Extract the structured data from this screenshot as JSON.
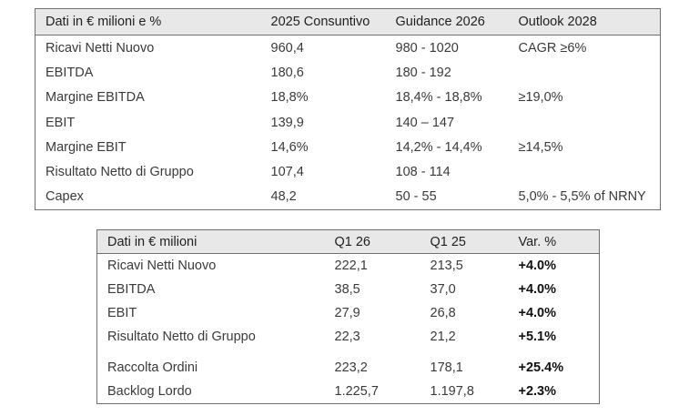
{
  "guidance_table": {
    "headers": [
      "Dati in € milioni e %",
      "2025 Consuntivo",
      "Guidance 2026",
      "Outlook 2028"
    ],
    "rows": [
      [
        "Ricavi Netti Nuovo",
        "960,4",
        "980 - 1020",
        "CAGR ≥6%"
      ],
      [
        "EBITDA",
        "180,6",
        "180 - 192",
        ""
      ],
      [
        "Margine EBITDA",
        "18,8%",
        "18,4% - 18,8%",
        "≥19,0%"
      ],
      [
        "EBIT",
        "139,9",
        "140 – 147",
        ""
      ],
      [
        "Margine EBIT",
        "14,6%",
        "14,2% - 14,4%",
        "≥14,5%"
      ],
      [
        "Risultato Netto di Gruppo",
        "107,4",
        "108 - 114",
        ""
      ],
      [
        "Capex",
        "48,2",
        "50 - 55",
        "5,0% - 5,5% of NRNY"
      ]
    ]
  },
  "quarter_table": {
    "headers": [
      "Dati in € milioni",
      "Q1 26",
      "Q1 25",
      "Var. %"
    ],
    "rows": [
      [
        "Ricavi Netti Nuovo",
        "222,1",
        "213,5",
        "+4.0%"
      ],
      [
        "EBITDA",
        "38,5",
        "37,0",
        "+4.0%"
      ],
      [
        "EBIT",
        "27,9",
        "26,8",
        "+4.0%"
      ],
      [
        "Risultato Netto di Gruppo",
        "22,3",
        "21,2",
        "+5.1%"
      ],
      [
        "Raccolta Ordini",
        "223,2",
        "178,1",
        "+25.4%"
      ],
      [
        "Backlog Lordo",
        "1.225,7",
        "1.197,8",
        "+2.3%"
      ]
    ]
  }
}
